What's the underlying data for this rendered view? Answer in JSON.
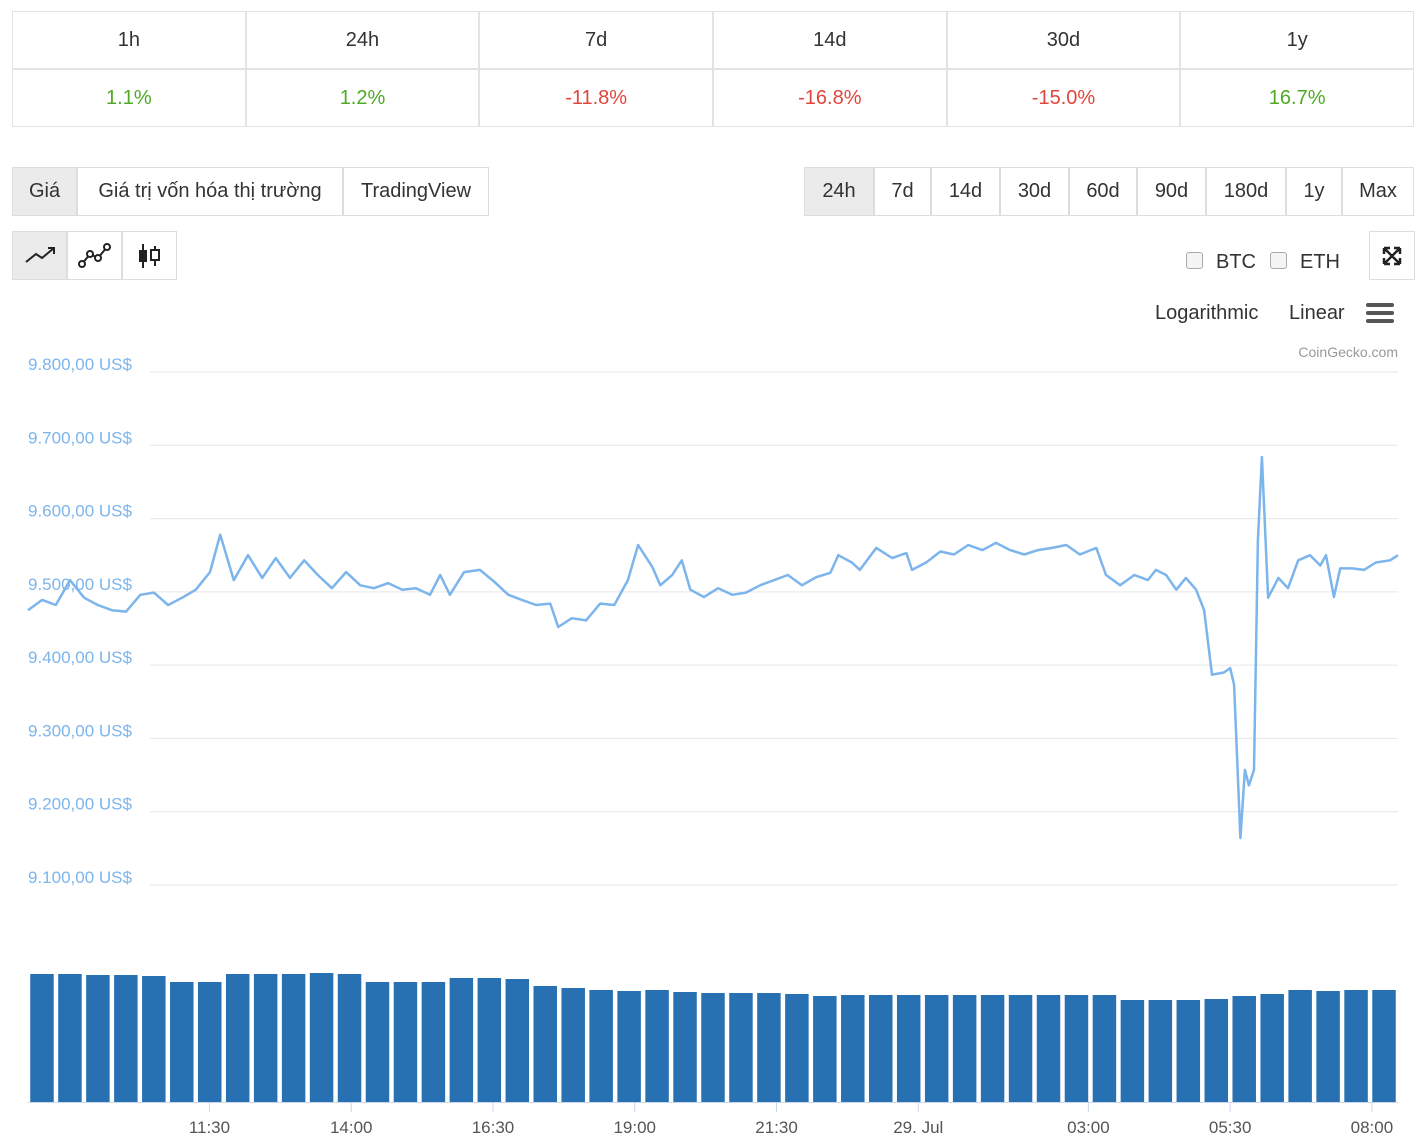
{
  "periods": {
    "labels": [
      "1h",
      "24h",
      "7d",
      "14d",
      "30d",
      "1y"
    ],
    "changes": [
      "1.1%",
      "1.2%",
      "-11.8%",
      "-16.8%",
      "-15.0%",
      "16.7%"
    ],
    "up_color": "#4eaa22",
    "down_color": "#e0463c"
  },
  "view_tabs": [
    "Giá",
    "Giá trị vốn hóa thị trường",
    "TradingView"
  ],
  "active_view": "Giá",
  "range_buttons": [
    "24h",
    "7d",
    "14d",
    "30d",
    "60d",
    "90d",
    "180d",
    "1y",
    "Max"
  ],
  "active_range": "24h",
  "compare": [
    "BTC",
    "ETH"
  ],
  "scale_options": [
    "Logarithmic",
    "Linear"
  ],
  "credit": "CoinGecko.com",
  "chart_data": [
    {
      "type": "line",
      "color": "#7cb5ec",
      "grid": true,
      "x": [
        8.3,
        8.55,
        8.79,
        9.04,
        9.29,
        9.53,
        9.78,
        10.03,
        10.28,
        10.52,
        10.77,
        11.02,
        11.26,
        11.51,
        11.69,
        11.93,
        12.18,
        12.43,
        12.67,
        12.92,
        13.17,
        13.41,
        13.66,
        13.91,
        14.16,
        14.4,
        14.65,
        14.9,
        15.14,
        15.39,
        15.57,
        15.74,
        15.99,
        16.27,
        16.52,
        16.77,
        17.01,
        17.26,
        17.51,
        17.65,
        17.89,
        18.14,
        18.39,
        18.64,
        18.88,
        19.06,
        19.31,
        19.45,
        19.66,
        19.83,
        19.98,
        20.22,
        20.47,
        20.72,
        20.96,
        21.21,
        21.46,
        21.7,
        21.95,
        22.2,
        22.45,
        22.59,
        22.83,
        22.97,
        23.26,
        23.54,
        23.79,
        23.89,
        24.14,
        24.39,
        24.63,
        24.88,
        25.13,
        25.37,
        25.62,
        25.87,
        26.11,
        26.36,
        26.61,
        26.85,
        27.14,
        27.31,
        27.56,
        27.81,
        28.05,
        28.19,
        28.37,
        28.55,
        28.72,
        28.9,
        29.04,
        29.18,
        29.39,
        29.5,
        29.57,
        29.68,
        29.76,
        29.83,
        29.92,
        29.99,
        30.06,
        30.17,
        30.35,
        30.52,
        30.7,
        30.91,
        31.09,
        31.19,
        31.33,
        31.44,
        31.65,
        31.86,
        32.07,
        32.32,
        32.46
      ],
      "values": [
        9475,
        9489,
        9482,
        9516,
        9492,
        9482,
        9475,
        9473,
        9496,
        9499,
        9482,
        9492,
        9503,
        9527,
        9578,
        9516,
        9550,
        9519,
        9546,
        9519,
        9543,
        9523,
        9505,
        9527,
        9509,
        9505,
        9512,
        9503,
        9505,
        9496,
        9523,
        9496,
        9527,
        9530,
        9514,
        9496,
        9489,
        9482,
        9484,
        9452,
        9464,
        9461,
        9484,
        9482,
        9516,
        9564,
        9534,
        9509,
        9523,
        9543,
        9503,
        9493,
        9505,
        9496,
        9499,
        9509,
        9516,
        9523,
        9509,
        9520,
        9526,
        9550,
        9540,
        9530,
        9560,
        9546,
        9553,
        9530,
        9540,
        9555,
        9551,
        9564,
        9557,
        9567,
        9557,
        9551,
        9557,
        9560,
        9564,
        9551,
        9560,
        9523,
        9509,
        9523,
        9516,
        9530,
        9523,
        9503,
        9519,
        9503,
        9475,
        9387,
        9390,
        9396,
        9373,
        9164,
        9257,
        9236,
        9257,
        9571,
        9684,
        9492,
        9519,
        9505,
        9543,
        9550,
        9536,
        9550,
        9493,
        9532,
        9532,
        9530,
        9540,
        9543,
        9550
      ],
      "xlim": [
        8.3,
        32.46
      ],
      "ylim": [
        9100,
        9800
      ],
      "yticks": [
        {
          "value": 9100,
          "label": "9.100,00 US$"
        },
        {
          "value": 9200,
          "label": "9.200,00 US$"
        },
        {
          "value": 9300,
          "label": "9.300,00 US$"
        },
        {
          "value": 9400,
          "label": "9.400,00 US$"
        },
        {
          "value": 9500,
          "label": "9.500,00 US$"
        },
        {
          "value": 9600,
          "label": "9.600,00 US$"
        },
        {
          "value": 9700,
          "label": "9.700,00 US$"
        },
        {
          "value": 9800,
          "label": "9.800,00 US$"
        }
      ],
      "xticks": [
        {
          "value": 11.5,
          "label": "11:30"
        },
        {
          "value": 14,
          "label": "14:00"
        },
        {
          "value": 16.5,
          "label": "16:30"
        },
        {
          "value": 19,
          "label": "19:00"
        },
        {
          "value": 21.5,
          "label": "21:30"
        },
        {
          "value": 24,
          "label": "29. Jul"
        },
        {
          "value": 27,
          "label": "03:00"
        },
        {
          "value": 29.5,
          "label": "05:30"
        },
        {
          "value": 32,
          "label": "08:00"
        }
      ]
    },
    {
      "type": "bar",
      "color": "#2771b3",
      "ylim": [
        0,
        140
      ],
      "values": [
        128,
        128,
        127,
        127,
        126,
        120,
        120,
        128,
        128,
        128,
        129,
        128,
        120,
        120,
        120,
        124,
        124,
        123,
        116,
        114,
        112,
        111,
        112,
        110,
        109,
        109,
        109,
        108,
        106,
        107,
        107,
        107,
        107,
        107,
        107,
        107,
        107,
        107,
        107,
        102,
        102,
        102,
        103,
        106,
        108,
        112,
        111,
        112,
        112
      ]
    }
  ]
}
